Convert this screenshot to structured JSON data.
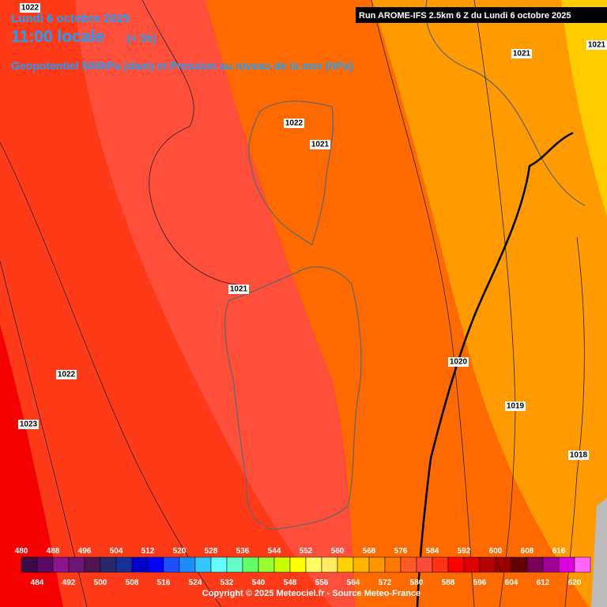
{
  "header": {
    "date": "Lundi 6 octobre 2025",
    "time": "11:00 locale",
    "lead": "(+ 3h)",
    "subtitle": "Geopotentiel 500hPa (dam) et Pression au niveau de la mer (hPa)",
    "run": "Run AROME-IFS 2.5km 6 Z du Lundi 6 octobre 2025"
  },
  "isobar_labels": [
    1022,
    1021,
    1021,
    1022,
    1021,
    1021,
    1022,
    1023,
    1020,
    1019,
    1018
  ],
  "legend": {
    "top_labels": [
      480,
      488,
      496,
      504,
      512,
      520,
      528,
      536,
      544,
      552,
      560,
      568,
      576,
      584,
      592,
      600,
      608,
      616
    ],
    "bottom_labels": [
      484,
      492,
      500,
      508,
      516,
      524,
      532,
      540,
      548,
      556,
      564,
      572,
      580,
      588,
      596,
      604,
      612,
      620
    ],
    "colors": [
      "#3c0a46",
      "#5a0a64",
      "#8c148c",
      "#6e1478",
      "#501450",
      "#28286e",
      "#143296",
      "#0000c8",
      "#0000ff",
      "#1e50ff",
      "#1e8cff",
      "#32c8ff",
      "#64ffff",
      "#64ffc8",
      "#64ff64",
      "#96ff32",
      "#c8ff00",
      "#ffff00",
      "#ffff64",
      "#ffeb64",
      "#ffd200",
      "#ffb400",
      "#ff9600",
      "#ff7800",
      "#ff5a28",
      "#ff4b3c",
      "#ff3214",
      "#ff0000",
      "#dc0000",
      "#b40000",
      "#960000",
      "#640000",
      "#78005a",
      "#a00096",
      "#dc00dc",
      "#ff64ff"
    ]
  },
  "copyright": "Copyright © 2025 Meteociel.fr - Source Meteo-France"
}
